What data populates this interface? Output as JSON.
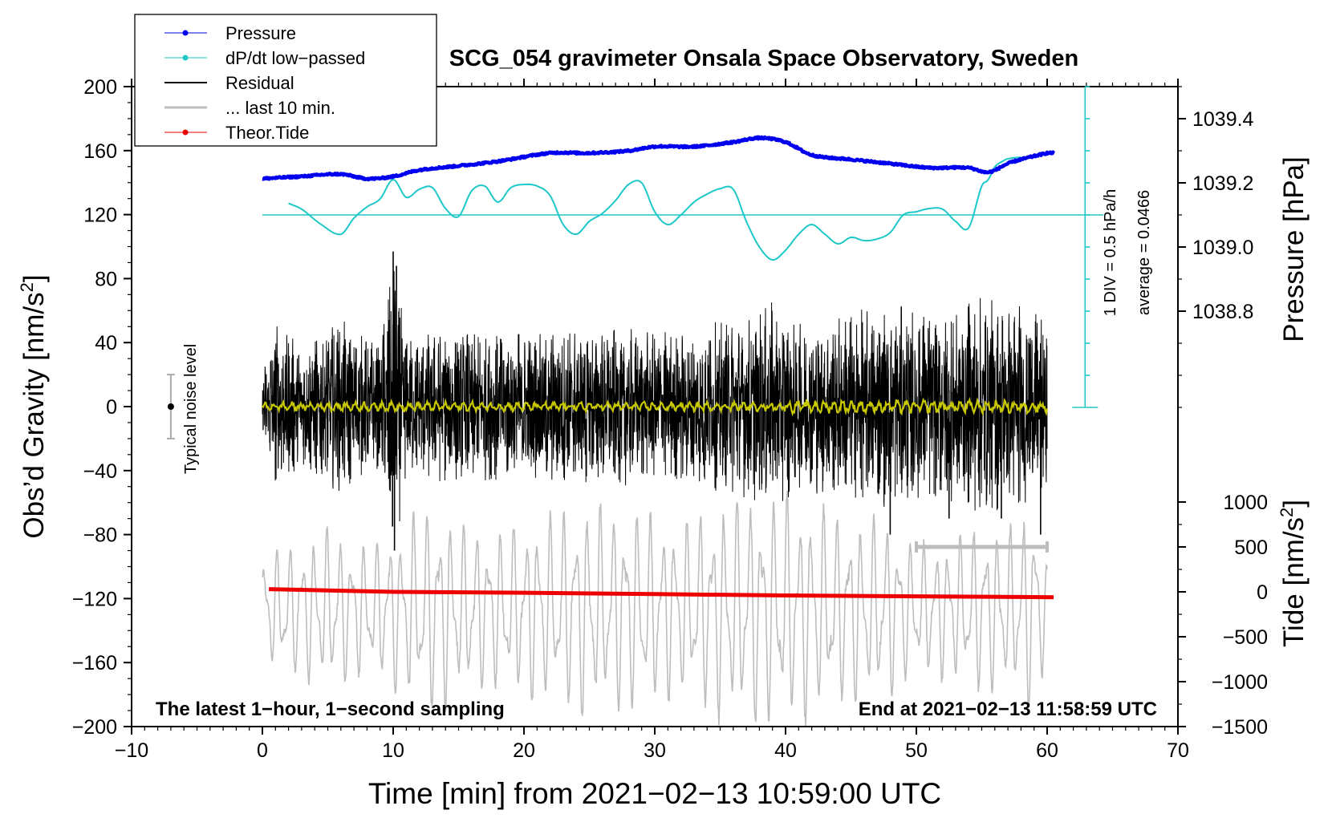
{
  "title": "SCG_054 gravimeter Onsala Space Observatory, Sweden",
  "colors": {
    "pressure": "#0000ee",
    "dpdt": "#1ec8c8",
    "residual": "#000000",
    "last10": "#bdbdbd",
    "tide": "#ee0000",
    "yellow": "#c8c800"
  },
  "legend": [
    {
      "label": "Pressure",
      "color": "#0000ee",
      "marker": true,
      "width": 1
    },
    {
      "label": "dP/dt low−passed",
      "color": "#1ec8c8",
      "marker": true,
      "width": 1
    },
    {
      "label": "Residual",
      "color": "#000000",
      "marker": false,
      "width": 2
    },
    {
      "label": "... last 10 min.",
      "color": "#bdbdbd",
      "marker": false,
      "width": 3
    },
    {
      "label": "Theor.Tide",
      "color": "#ee0000",
      "marker": true,
      "width": 1
    }
  ],
  "noise_label": "Typical noise level",
  "dpdt_scale_label": "1 DIV = 0.5 hPa/h",
  "dpdt_average_label": "average = 0.0466",
  "footer_left": "The latest 1−hour, 1−second sampling",
  "footer_right": "End at 2021−02−13 11:58:59 UTC",
  "chart_data": {
    "type": "line",
    "title": "SCG_054 gravimeter Onsala Space Observatory, Sweden",
    "xlabel": "Time [min] from 2021−02−13 10:59:00 UTC",
    "xlim": [
      -10,
      70
    ],
    "xticks": [
      -10,
      0,
      10,
      20,
      30,
      40,
      50,
      60,
      70
    ],
    "xtick_labels": [
      "−10",
      "0",
      "10",
      "20",
      "30",
      "40",
      "50",
      "60",
      "70"
    ],
    "left_axis": {
      "label_main": "Obs’d Gravity [nm/s",
      "label_sup": "2",
      "label_tail": "]",
      "lim": [
        -200,
        200
      ],
      "ticks": [
        -200,
        -160,
        -120,
        -80,
        -40,
        0,
        40,
        80,
        120,
        160,
        200
      ],
      "tick_labels": [
        "−200",
        "−160",
        "−120",
        "−80",
        "−40",
        "0",
        "40",
        "80",
        "120",
        "160",
        "200"
      ]
    },
    "pressure_axis": {
      "label": "Pressure [hPa]",
      "lim": [
        1038.5,
        1039.5
      ],
      "ticks": [
        1038.8,
        1039.0,
        1039.2,
        1039.4
      ],
      "tick_labels": [
        "1038.8",
        "1039.0",
        "1039.2",
        "1039.4"
      ]
    },
    "tide_axis": {
      "label_main": "Tide [nm/s",
      "label_sup": "2",
      "label_tail": "]",
      "lim": [
        -1500,
        1500
      ],
      "ticks": [
        -1500,
        -1000,
        -500,
        0,
        500,
        1000
      ],
      "tick_labels": [
        "−1500",
        "−1000",
        "−500",
        "0",
        "500",
        "1000"
      ]
    },
    "noise_bar": {
      "x": -7,
      "center": 0,
      "half_range": 20
    },
    "last10_marker": {
      "x_start": 50,
      "x_end": 60,
      "tide_value": 500
    },
    "series": [
      {
        "name": "Pressure",
        "axis": "pressure",
        "x": [
          0,
          3,
          6,
          8,
          10,
          12,
          15,
          18,
          22,
          25,
          28,
          30,
          33,
          36,
          38,
          40,
          42,
          45,
          48,
          51,
          54,
          55.5,
          57,
          58,
          60
        ],
        "y": [
          1039.213,
          1039.22,
          1039.227,
          1039.213,
          1039.22,
          1039.24,
          1039.253,
          1039.267,
          1039.293,
          1039.293,
          1039.3,
          1039.313,
          1039.313,
          1039.327,
          1039.34,
          1039.327,
          1039.287,
          1039.273,
          1039.26,
          1039.247,
          1039.247,
          1039.233,
          1039.26,
          1039.273,
          1039.293
        ]
      },
      {
        "name": "dP/dt low-passed",
        "axis": "dpdt_div",
        "baseline_pressure": 1039.1,
        "hpa_per_div": 0.1,
        "x": [
          2,
          3,
          4.5,
          6,
          7,
          8,
          9,
          10,
          11,
          12,
          13,
          14,
          15,
          16,
          17,
          18,
          19,
          20,
          21,
          22,
          23,
          24,
          25,
          26,
          27,
          28,
          29,
          30,
          31,
          32,
          33,
          34,
          35,
          36,
          37,
          38,
          39,
          40,
          41,
          42,
          43,
          44,
          45,
          46,
          47,
          48,
          49,
          50,
          51,
          52,
          53,
          54,
          55,
          55.5,
          56,
          56.5,
          57,
          58
        ],
        "y": [
          0.36,
          0.18,
          -0.3,
          -0.6,
          -0.1,
          0.25,
          0.5,
          1.1,
          0.55,
          0.8,
          0.85,
          0.2,
          -0.05,
          0.75,
          0.9,
          0.4,
          0.85,
          0.95,
          0.9,
          0.6,
          -0.3,
          -0.6,
          -0.2,
          0.05,
          0.45,
          0.95,
          1.0,
          0.1,
          -0.3,
          0.0,
          0.4,
          0.65,
          0.82,
          0.8,
          -0.2,
          -1.0,
          -1.4,
          -1.1,
          -0.6,
          -0.3,
          -0.6,
          -0.9,
          -0.7,
          -0.8,
          -0.75,
          -0.55,
          0.0,
          0.1,
          0.2,
          0.18,
          -0.2,
          -0.4,
          0.9,
          1.1,
          1.5,
          1.65,
          1.75,
          1.8
        ]
      },
      {
        "name": "Residual",
        "axis": "left",
        "x_range": [
          0,
          60
        ],
        "envelope": [
          [
            0,
            22
          ],
          [
            1,
            55
          ],
          [
            3,
            40
          ],
          [
            6,
            55
          ],
          [
            9,
            40
          ],
          [
            10,
            95
          ],
          [
            10.4,
            80
          ],
          [
            11,
            45
          ],
          [
            15,
            50
          ],
          [
            20,
            48
          ],
          [
            25,
            52
          ],
          [
            30,
            48
          ],
          [
            34,
            52
          ],
          [
            37,
            58
          ],
          [
            39,
            66
          ],
          [
            41,
            52
          ],
          [
            45,
            60
          ],
          [
            48,
            64
          ],
          [
            52,
            60
          ],
          [
            55,
            70
          ],
          [
            58,
            65
          ],
          [
            60,
            55
          ]
        ],
        "spikes": [
          {
            "x": 10.0,
            "y": 97
          },
          {
            "x": 10.1,
            "y": -90
          },
          {
            "x": 10.25,
            "y": 88
          },
          {
            "x": 9.95,
            "y": -75
          },
          {
            "x": 48,
            "y": -80
          },
          {
            "x": 52.5,
            "y": -70
          },
          {
            "x": 56.5,
            "y": -70
          },
          {
            "x": 59.5,
            "y": -80
          }
        ]
      },
      {
        "name": "Residual (smoothed)",
        "axis": "left",
        "x_range": [
          0,
          60
        ],
        "amplitude": 3
      },
      {
        "name": "... last 10 min.",
        "axis": "left",
        "x_range": [
          0,
          60
        ],
        "center": -127,
        "x_env": [
          0,
          2,
          5,
          8,
          10,
          13,
          15,
          18,
          22,
          25,
          28,
          32,
          35,
          38,
          40,
          43,
          45,
          48,
          50,
          53,
          55,
          57,
          59,
          60
        ],
        "amp": [
          40,
          45,
          55,
          45,
          55,
          75,
          60,
          55,
          65,
          75,
          70,
          60,
          75,
          80,
          80,
          70,
          65,
          60,
          45,
          50,
          60,
          55,
          75,
          30
        ]
      },
      {
        "name": "Theor.Tide",
        "axis": "tide",
        "x": [
          0.5,
          5,
          10,
          20,
          30,
          40,
          50,
          60.5
        ],
        "y": [
          30,
          15,
          0,
          -10,
          -25,
          -40,
          -50,
          -60
        ]
      }
    ]
  }
}
